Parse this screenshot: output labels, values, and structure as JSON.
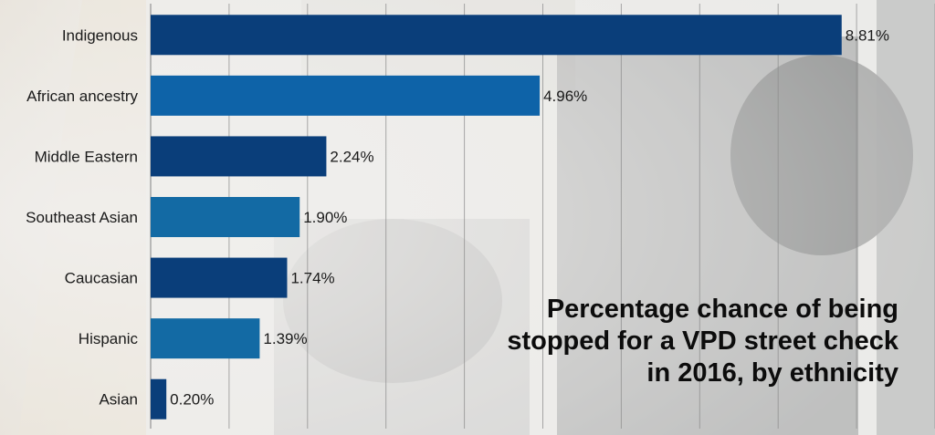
{
  "chart_data": {
    "type": "bar",
    "orientation": "horizontal",
    "title": "Percentage chance of being\nstopped for a VPD street check\nin 2016, by ethnicity",
    "categories": [
      "Indigenous",
      "African ancestry",
      "Middle Eastern",
      "Southeast Asian",
      "Caucasian",
      "Hispanic",
      "Asian"
    ],
    "values": [
      8.81,
      4.96,
      2.24,
      1.9,
      1.74,
      1.39,
      0.2
    ],
    "value_labels": [
      "8.81%",
      "4.96%",
      "2.24%",
      "1.90%",
      "1.74%",
      "1.39%",
      "0.20%"
    ],
    "xlim": [
      0,
      10
    ],
    "grid": true,
    "colors": [
      "#0a3e7a",
      "#0e63a8",
      "#0a3e7a",
      "#136aa4",
      "#0a3e7a",
      "#136aa4",
      "#0a3e7a"
    ]
  },
  "background_colors": {
    "chart_bg": "#f2f0ee",
    "photo_dark": "#3b3c3e",
    "gridline": "#8e8e8e"
  }
}
